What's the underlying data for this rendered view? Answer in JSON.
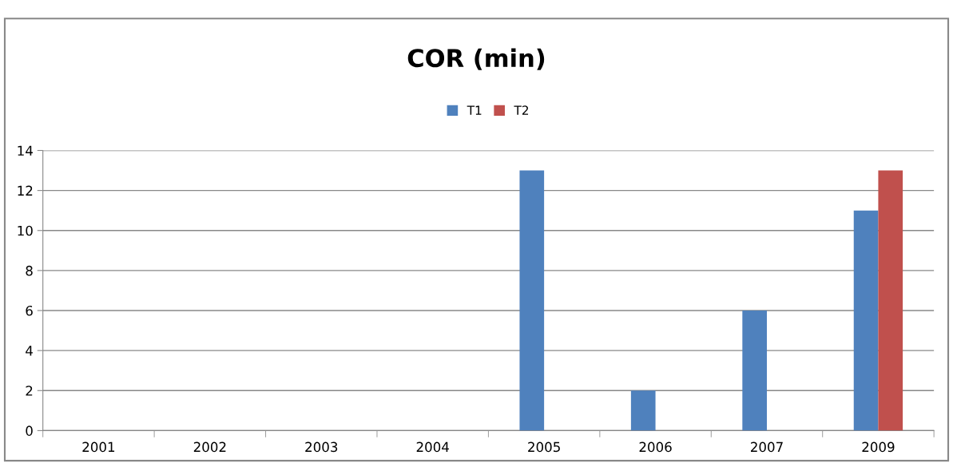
{
  "chart_data": {
    "type": "bar",
    "title": "COR (min)",
    "categories": [
      "2001",
      "2002",
      "2003",
      "2004",
      "2005",
      "2006",
      "2007",
      "2009"
    ],
    "series": [
      {
        "name": "T1",
        "color": "#4f81bd",
        "values": [
          null,
          null,
          null,
          null,
          13,
          2,
          6,
          11
        ]
      },
      {
        "name": "T2",
        "color": "#c0504d",
        "values": [
          null,
          null,
          null,
          null,
          null,
          null,
          null,
          13
        ]
      }
    ],
    "ylim": [
      0,
      14
    ],
    "yticks": [
      0,
      2,
      4,
      6,
      8,
      10,
      12,
      14
    ],
    "grid": "y",
    "legend": "top"
  }
}
